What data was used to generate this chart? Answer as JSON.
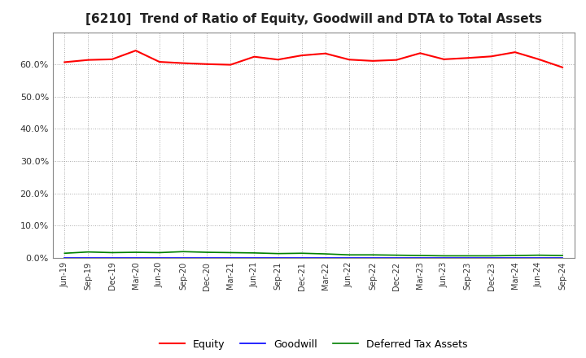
{
  "title": "[6210]  Trend of Ratio of Equity, Goodwill and DTA to Total Assets",
  "labels": [
    "Jun-19",
    "Sep-19",
    "Dec-19",
    "Mar-20",
    "Jun-20",
    "Sep-20",
    "Dec-20",
    "Mar-21",
    "Jun-21",
    "Sep-21",
    "Dec-21",
    "Mar-22",
    "Jun-22",
    "Sep-22",
    "Dec-22",
    "Mar-23",
    "Jun-23",
    "Sep-23",
    "Dec-23",
    "Mar-24",
    "Jun-24",
    "Sep-24"
  ],
  "equity": [
    0.607,
    0.614,
    0.616,
    0.643,
    0.608,
    0.604,
    0.601,
    0.599,
    0.624,
    0.615,
    0.628,
    0.634,
    0.615,
    0.611,
    0.614,
    0.635,
    0.616,
    0.62,
    0.625,
    0.638,
    0.616,
    0.591
  ],
  "goodwill": [
    0.0,
    0.0,
    0.0,
    0.0,
    0.0,
    0.0,
    0.0,
    0.0,
    0.0,
    0.0,
    0.0,
    0.0,
    0.0,
    0.0,
    0.0,
    0.0,
    0.0,
    0.0,
    0.0,
    0.0,
    0.0,
    0.0
  ],
  "dta": [
    0.014,
    0.018,
    0.016,
    0.017,
    0.016,
    0.019,
    0.017,
    0.016,
    0.015,
    0.013,
    0.014,
    0.012,
    0.009,
    0.009,
    0.008,
    0.007,
    0.006,
    0.006,
    0.006,
    0.007,
    0.008,
    0.007
  ],
  "equity_color": "#ff0000",
  "goodwill_color": "#0000ff",
  "dta_color": "#008000",
  "ylim": [
    0.0,
    0.7
  ],
  "yticks": [
    0.0,
    0.1,
    0.2,
    0.3,
    0.4,
    0.5,
    0.6
  ],
  "background_color": "#ffffff",
  "legend_labels": [
    "Equity",
    "Goodwill",
    "Deferred Tax Assets"
  ],
  "title_fontsize": 11,
  "grid_color": "#aaaaaa"
}
